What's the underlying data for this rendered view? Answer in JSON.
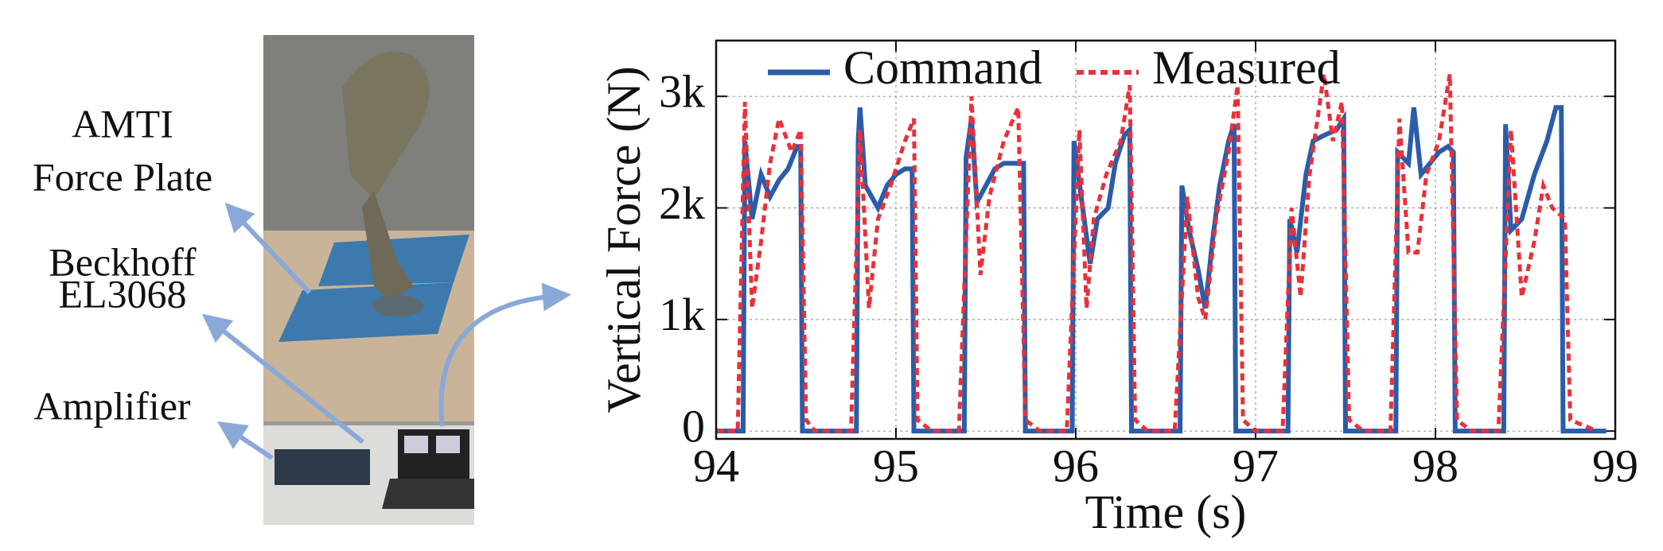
{
  "figure_labels": [
    [
      "AMTI",
      "Force Plate"
    ],
    [
      "Beckhoff",
      "EL3068"
    ],
    [
      "Amplifier"
    ]
  ],
  "chart_data": {
    "type": "line",
    "xlabel": "Time (s)",
    "ylabel": "Vertical Force (N)",
    "xlim": [
      94,
      99
    ],
    "xticks": [
      94,
      95,
      96,
      97,
      98,
      99
    ],
    "ylim": [
      -70,
      3500
    ],
    "yticks": [
      0,
      {
        "value": 1000,
        "label": "1k"
      },
      {
        "value": 2000,
        "label": "2k"
      },
      {
        "value": 3000,
        "label": "3k"
      }
    ],
    "grid": true,
    "legend": "top",
    "series": [
      {
        "name": "Command",
        "color": "#2a5caa",
        "dash": false,
        "x": [
          94.0,
          94.15,
          94.16,
          94.2,
          94.25,
          94.3,
          94.35,
          94.4,
          94.45,
          94.47,
          94.48,
          94.78,
          94.79,
          94.8,
          94.83,
          94.9,
          94.95,
          95.0,
          95.05,
          95.09,
          95.1,
          95.38,
          95.39,
          95.42,
          95.45,
          95.5,
          95.55,
          95.6,
          95.65,
          95.71,
          95.72,
          95.98,
          95.99,
          96.03,
          96.08,
          96.12,
          96.18,
          96.22,
          96.27,
          96.3,
          96.31,
          96.58,
          96.59,
          96.63,
          96.68,
          96.72,
          96.76,
          96.8,
          96.85,
          96.88,
          96.89,
          97.18,
          97.19,
          97.23,
          97.28,
          97.32,
          97.38,
          97.45,
          97.49,
          97.5,
          97.78,
          97.79,
          97.85,
          97.88,
          97.92,
          97.97,
          98.02,
          98.07,
          98.1,
          98.11,
          98.38,
          98.39,
          98.42,
          98.48,
          98.55,
          98.62,
          98.67,
          98.7,
          98.71,
          98.95
        ],
        "values": [
          0,
          0,
          2600,
          1900,
          2300,
          2100,
          2250,
          2350,
          2550,
          2550,
          0,
          0,
          2600,
          2900,
          2200,
          2000,
          2200,
          2300,
          2350,
          2350,
          0,
          0,
          2450,
          2800,
          2050,
          2200,
          2350,
          2400,
          2400,
          2400,
          0,
          0,
          2600,
          2100,
          1500,
          1900,
          2000,
          2400,
          2650,
          2700,
          0,
          0,
          2200,
          1800,
          1450,
          1100,
          1700,
          2200,
          2600,
          2750,
          0,
          0,
          1900,
          1600,
          2300,
          2600,
          2650,
          2700,
          2800,
          0,
          0,
          2500,
          2400,
          2900,
          2300,
          2400,
          2500,
          2550,
          2500,
          0,
          0,
          2750,
          1800,
          1900,
          2300,
          2600,
          2900,
          2900,
          0,
          0
        ]
      },
      {
        "name": "Measured",
        "color": "#e8313a",
        "dash": true,
        "x": [
          94.0,
          94.12,
          94.16,
          94.2,
          94.25,
          94.3,
          94.35,
          94.42,
          94.47,
          94.5,
          94.55,
          94.75,
          94.8,
          94.85,
          94.9,
          94.97,
          95.05,
          95.1,
          95.12,
          95.2,
          95.35,
          95.42,
          95.47,
          95.52,
          95.6,
          95.68,
          95.72,
          95.8,
          95.95,
          96.02,
          96.06,
          96.1,
          96.17,
          96.25,
          96.3,
          96.33,
          96.4,
          96.55,
          96.62,
          96.68,
          96.72,
          96.78,
          96.85,
          96.9,
          96.93,
          97.0,
          97.15,
          97.2,
          97.25,
          97.3,
          97.38,
          97.43,
          97.48,
          97.52,
          97.6,
          97.75,
          97.8,
          97.85,
          97.9,
          97.95,
          98.02,
          98.08,
          98.12,
          98.2,
          98.35,
          98.42,
          98.48,
          98.55,
          98.6,
          98.65,
          98.72,
          98.75,
          98.9
        ],
        "values": [
          0,
          0,
          2950,
          1100,
          1700,
          2400,
          2800,
          2500,
          2700,
          100,
          0,
          0,
          2700,
          1100,
          1900,
          2200,
          2600,
          2800,
          100,
          0,
          0,
          3000,
          1400,
          2100,
          2600,
          2900,
          100,
          0,
          0,
          2700,
          1100,
          1900,
          2300,
          2600,
          3100,
          100,
          0,
          0,
          2100,
          1200,
          1000,
          1900,
          2500,
          3100,
          100,
          0,
          0,
          2000,
          1200,
          2300,
          3200,
          2600,
          2950,
          100,
          0,
          0,
          2800,
          1600,
          1600,
          2300,
          2600,
          3200,
          100,
          0,
          0,
          2700,
          1200,
          1700,
          2200,
          2000,
          1900,
          100,
          0
        ]
      }
    ]
  }
}
